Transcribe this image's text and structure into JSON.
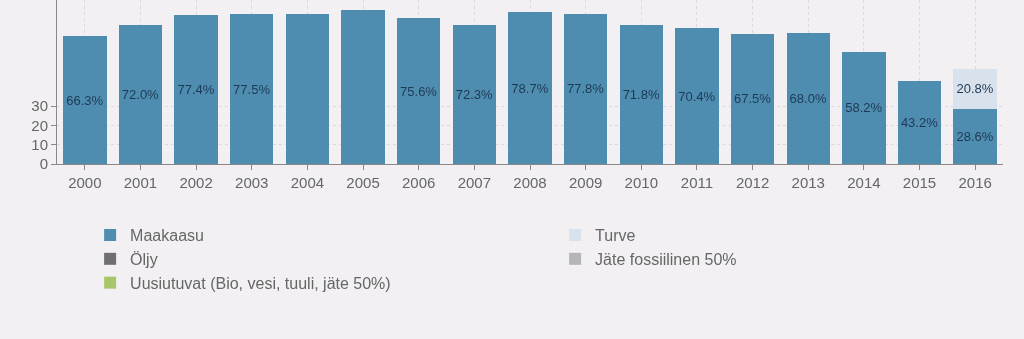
{
  "chart_data": {
    "type": "bar",
    "stacked": true,
    "categories": [
      "2000",
      "2001",
      "2002",
      "2003",
      "2004",
      "2005",
      "2006",
      "2007",
      "2008",
      "2009",
      "2010",
      "2011",
      "2012",
      "2013",
      "2014",
      "2015",
      "2016"
    ],
    "series": [
      {
        "name": "Maakaasu",
        "color": "#4f8db0",
        "values": [
          66.3,
          72.0,
          77.4,
          77.5,
          77.7,
          80,
          75.6,
          72.3,
          78.7,
          77.8,
          71.8,
          70.4,
          67.5,
          68.0,
          58.2,
          43.2,
          28.6
        ],
        "value_labels": [
          "66.3%",
          "72.0%",
          "77.4%",
          "77.5%",
          null,
          null,
          "75.6%",
          "72.3%",
          "78.7%",
          "77.8%",
          "71.8%",
          "70.4%",
          "67.5%",
          "68.0%",
          "58.2%",
          "43.2%",
          "28.6%"
        ]
      },
      {
        "name": "Turve",
        "color": "#d9e2ec",
        "values": [
          null,
          null,
          null,
          null,
          null,
          null,
          null,
          null,
          null,
          null,
          null,
          null,
          null,
          null,
          null,
          null,
          20.8
        ],
        "value_labels": [
          null,
          null,
          null,
          null,
          null,
          null,
          null,
          null,
          null,
          null,
          null,
          null,
          null,
          null,
          null,
          null,
          "20.8%"
        ]
      },
      {
        "name": "Öljy",
        "color": "#6f6f72",
        "values": [
          null,
          null,
          null,
          null,
          null,
          null,
          null,
          null,
          null,
          null,
          null,
          null,
          null,
          null,
          null,
          null,
          null
        ]
      },
      {
        "name": "Jäte fossiilinen 50%",
        "color": "#b5b5b7",
        "values": [
          null,
          null,
          null,
          null,
          null,
          null,
          null,
          null,
          null,
          null,
          null,
          null,
          null,
          null,
          null,
          null,
          null
        ]
      },
      {
        "name": "Uusiutuvat (Bio, vesi, tuuli, jäte 50%)",
        "color": "#a7c66a",
        "values": [
          null,
          null,
          null,
          null,
          null,
          null,
          null,
          null,
          null,
          null,
          null,
          null,
          null,
          null,
          null,
          null,
          null
        ]
      }
    ],
    "ylim": [
      0,
      85
    ],
    "yticks": [
      0,
      10,
      20,
      30
    ],
    "grid": true,
    "legend": "bottom"
  }
}
